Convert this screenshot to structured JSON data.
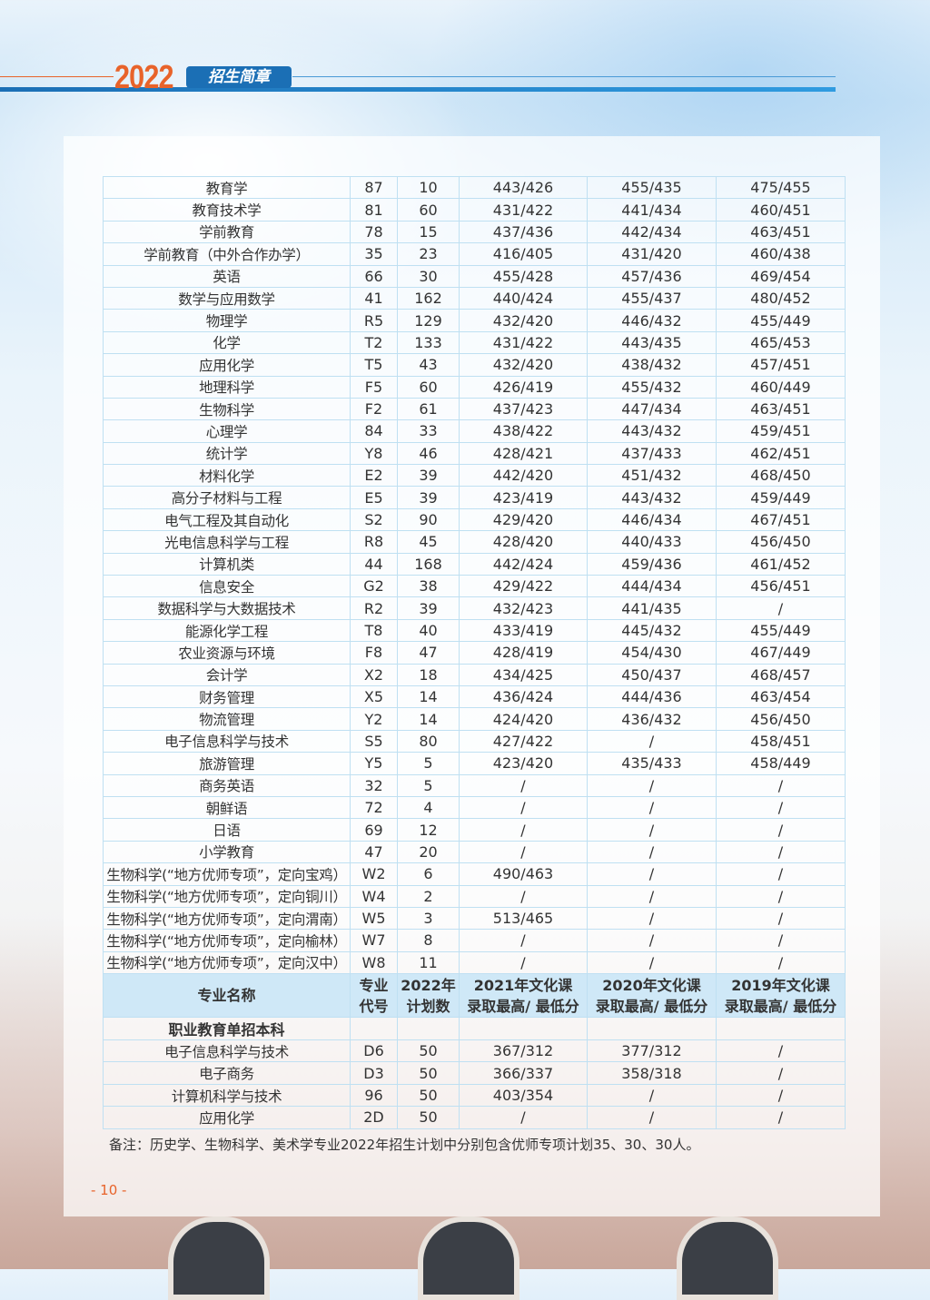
{
  "header": {
    "year": "2022",
    "badge": "招生简章",
    "accent": "#e8632a",
    "brand": "#1b6fb5"
  },
  "table": {
    "rows_top": [
      [
        "教育学",
        "87",
        "10",
        "443/426",
        "455/435",
        "475/455"
      ],
      [
        "教育技术学",
        "81",
        "60",
        "431/422",
        "441/434",
        "460/451"
      ],
      [
        "学前教育",
        "78",
        "15",
        "437/436",
        "442/434",
        "463/451"
      ],
      [
        "学前教育（中外合作办学）",
        "35",
        "23",
        "416/405",
        "431/420",
        "460/438"
      ],
      [
        "英语",
        "66",
        "30",
        "455/428",
        "457/436",
        "469/454"
      ],
      [
        "数学与应用数学",
        "41",
        "162",
        "440/424",
        "455/437",
        "480/452"
      ],
      [
        "物理学",
        "R5",
        "129",
        "432/420",
        "446/432",
        "455/449"
      ],
      [
        "化学",
        "T2",
        "133",
        "431/422",
        "443/435",
        "465/453"
      ],
      [
        "应用化学",
        "T5",
        "43",
        "432/420",
        "438/432",
        "457/451"
      ],
      [
        "地理科学",
        "F5",
        "60",
        "426/419",
        "455/432",
        "460/449"
      ],
      [
        "生物科学",
        "F2",
        "61",
        "437/423",
        "447/434",
        "463/451"
      ],
      [
        "心理学",
        "84",
        "33",
        "438/422",
        "443/432",
        "459/451"
      ],
      [
        "统计学",
        "Y8",
        "46",
        "428/421",
        "437/433",
        "462/451"
      ],
      [
        "材料化学",
        "E2",
        "39",
        "442/420",
        "451/432",
        "468/450"
      ],
      [
        "高分子材料与工程",
        "E5",
        "39",
        "423/419",
        "443/432",
        "459/449"
      ],
      [
        "电气工程及其自动化",
        "S2",
        "90",
        "429/420",
        "446/434",
        "467/451"
      ],
      [
        "光电信息科学与工程",
        "R8",
        "45",
        "428/420",
        "440/433",
        "456/450"
      ],
      [
        "计算机类",
        "44",
        "168",
        "442/424",
        "459/436",
        "461/452"
      ],
      [
        "信息安全",
        "G2",
        "38",
        "429/422",
        "444/434",
        "456/451"
      ],
      [
        "数据科学与大数据技术",
        "R2",
        "39",
        "432/423",
        "441/435",
        "/"
      ],
      [
        "能源化学工程",
        "T8",
        "40",
        "433/419",
        "445/432",
        "455/449"
      ],
      [
        "农业资源与环境",
        "F8",
        "47",
        "428/419",
        "454/430",
        "467/449"
      ],
      [
        "会计学",
        "X2",
        "18",
        "434/425",
        "450/437",
        "468/457"
      ],
      [
        "财务管理",
        "X5",
        "14",
        "436/424",
        "444/436",
        "463/454"
      ],
      [
        "物流管理",
        "Y2",
        "14",
        "424/420",
        "436/432",
        "456/450"
      ],
      [
        "电子信息科学与技术",
        "S5",
        "80",
        "427/422",
        "/",
        "458/451"
      ],
      [
        "旅游管理",
        "Y5",
        "5",
        "423/420",
        "435/433",
        "458/449"
      ],
      [
        "商务英语",
        "32",
        "5",
        "/",
        "/",
        "/"
      ],
      [
        "朝鲜语",
        "72",
        "4",
        "/",
        "/",
        "/"
      ],
      [
        "日语",
        "69",
        "12",
        "/",
        "/",
        "/"
      ],
      [
        "小学教育",
        "47",
        "20",
        "/",
        "/",
        "/"
      ],
      [
        "生物科学(“地方优师专项”，定向宝鸡）",
        "W2",
        "6",
        "490/463",
        "/",
        "/"
      ],
      [
        "生物科学(“地方优师专项”，定向铜川）",
        "W4",
        "2",
        "/",
        "/",
        "/"
      ],
      [
        "生物科学(“地方优师专项”，定向渭南）",
        "W5",
        "3",
        "513/465",
        "/",
        "/"
      ],
      [
        "生物科学(“地方优师专项”，定向榆林）",
        "W7",
        "8",
        "/",
        "/",
        "/"
      ],
      [
        "生物科学(“地方优师专项”，定向汉中）",
        "W8",
        "11",
        "/",
        "/",
        "/"
      ]
    ],
    "columns": [
      [
        "专业名称"
      ],
      [
        "专业",
        "代号"
      ],
      [
        "2022年",
        "计划数"
      ],
      [
        "2021年文化课",
        "录取最高/ 最低分"
      ],
      [
        "2020年文化课",
        "录取最高/ 最低分"
      ],
      [
        "2019年文化课",
        "录取最高/ 最低分"
      ]
    ],
    "section_title": "职业教育单招本科",
    "rows_bottom": [
      [
        "电子信息科学与技术",
        "D6",
        "50",
        "367/312",
        "377/312",
        "/"
      ],
      [
        "电子商务",
        "D3",
        "50",
        "366/337",
        "358/318",
        "/"
      ],
      [
        "计算机科学与技术",
        "96",
        "50",
        "403/354",
        "/",
        "/"
      ],
      [
        "应用化学",
        "2D",
        "50",
        "/",
        "/",
        "/"
      ]
    ]
  },
  "note": "备注：历史学、生物科学、美术学专业2022年招生计划中分别包含优师专项计划35、30、30人。",
  "page_number": "- 10 -"
}
